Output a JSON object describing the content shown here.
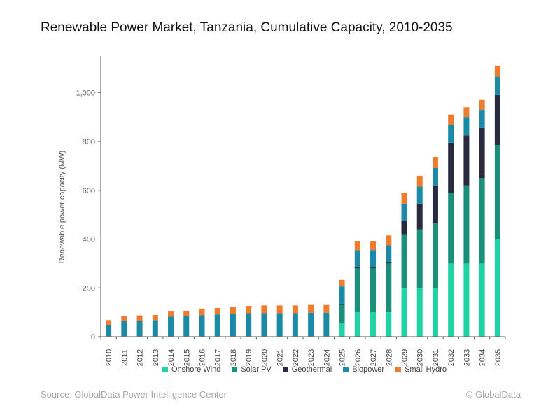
{
  "title": "Renewable Power Market, Tanzania, Cumulative Capacity, 2010-2035",
  "source": "Source: GlobalData Power Intelligence Center",
  "brand": "© GlobalData",
  "chart_data": {
    "type": "bar",
    "stacked": true,
    "categories": [
      "2010",
      "2011",
      "2012",
      "2013",
      "2014",
      "2015",
      "2016",
      "2017",
      "2018",
      "2019",
      "2020",
      "2021",
      "2022",
      "2023",
      "2024",
      "2025",
      "2026",
      "2027",
      "2028",
      "2029",
      "2030",
      "2031",
      "2032",
      "2033",
      "2034",
      "2035"
    ],
    "ylabel": "Renewable power capacity (MW)",
    "xlabel": "",
    "ylim": [
      0,
      1150
    ],
    "yticks": [
      0,
      200,
      400,
      600,
      800,
      1000
    ],
    "ytick_labels": [
      "0",
      "200",
      "400",
      "600",
      "800",
      "1,000"
    ],
    "grid": false,
    "legend_position": "bottom",
    "series": [
      {
        "name": "Onshore Wind",
        "color": "#1fd3a4",
        "values": [
          0,
          0,
          0,
          0,
          0,
          0,
          0,
          0,
          0,
          0,
          0,
          0,
          0,
          0,
          0,
          55,
          100,
          100,
          100,
          200,
          200,
          200,
          300,
          300,
          300,
          400
        ]
      },
      {
        "name": "Solar PV",
        "color": "#1a8f7a",
        "values": [
          2,
          2,
          2,
          2,
          2,
          2,
          2,
          2,
          2,
          2,
          2,
          2,
          2,
          2,
          2,
          75,
          180,
          180,
          200,
          220,
          240,
          265,
          290,
          320,
          350,
          385
        ]
      },
      {
        "name": "Geothermal",
        "color": "#2a2a3e",
        "values": [
          0,
          0,
          0,
          0,
          0,
          0,
          0,
          0,
          0,
          0,
          0,
          0,
          0,
          0,
          0,
          5,
          5,
          5,
          5,
          55,
          105,
          155,
          205,
          205,
          205,
          205
        ]
      },
      {
        "name": "Biopower",
        "color": "#1a8aa6",
        "values": [
          46,
          62,
          64,
          66,
          80,
          82,
          86,
          89,
          92,
          94,
          94,
          94,
          94,
          96,
          96,
          71,
          70,
          70,
          70,
          70,
          70,
          72,
          75,
          75,
          75,
          75
        ]
      },
      {
        "name": "Small Hydro",
        "color": "#ef7b2c",
        "values": [
          20,
          20,
          21,
          21,
          21,
          21,
          27,
          27,
          29,
          30,
          32,
          32,
          32,
          32,
          32,
          27,
          35,
          35,
          40,
          45,
          45,
          45,
          40,
          40,
          40,
          45
        ]
      }
    ]
  }
}
